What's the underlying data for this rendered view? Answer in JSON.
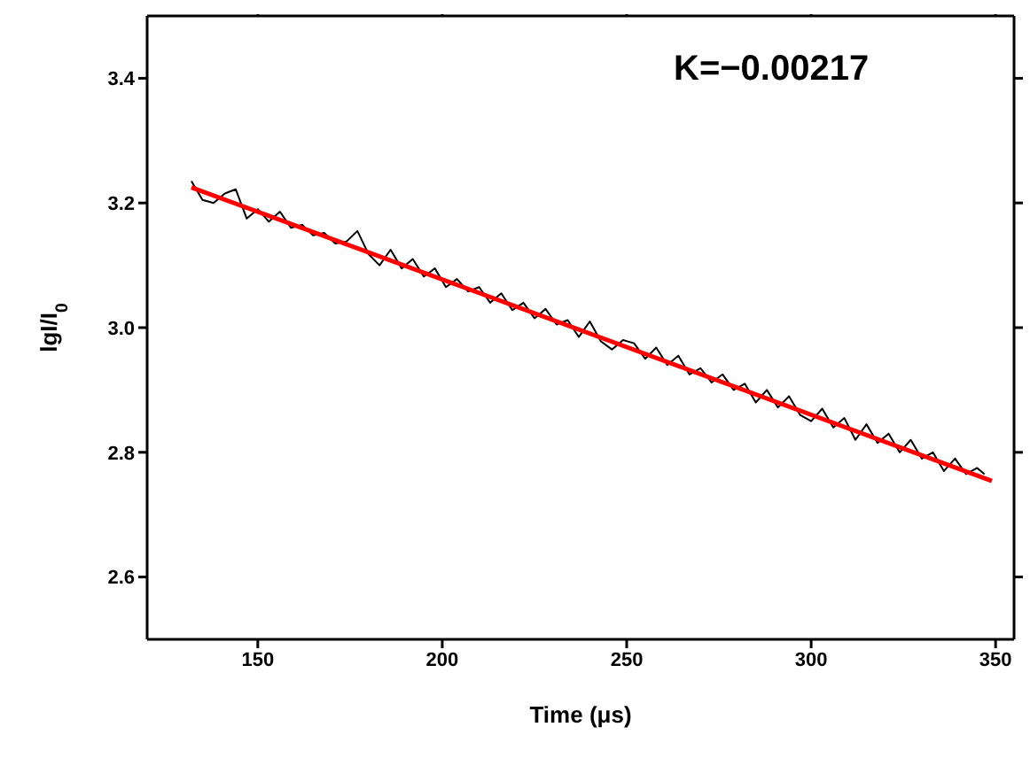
{
  "chart_data": {
    "type": "line",
    "xlabel": "Time (μs)",
    "ylabel": "lgI/I$_{0}$",
    "annotations": [
      "K=−0.00217"
    ],
    "xlim": [
      120,
      355
    ],
    "xticks": [
      150,
      200,
      250,
      300,
      350
    ],
    "ylim": [
      2.5,
      3.5
    ],
    "yticks": [
      2.6,
      2.8,
      {
        "value": 3,
        "label": "3.0"
      },
      3.2,
      3.4
    ],
    "marker": "none",
    "line_style": "solid",
    "series": [
      {
        "color": "#000000",
        "x": [
          132,
          135,
          138,
          141,
          144,
          147,
          150,
          153,
          156,
          159,
          162,
          165,
          168,
          171,
          174,
          177,
          180,
          183,
          186,
          189,
          192,
          195,
          198,
          201,
          204,
          207,
          210,
          213,
          216,
          219,
          222,
          225,
          228,
          231,
          234,
          237,
          240,
          243,
          246,
          249,
          252,
          255,
          258,
          261,
          264,
          267,
          270,
          273,
          276,
          279,
          282,
          285,
          288,
          291,
          294,
          297,
          300,
          303,
          306,
          309,
          312,
          315,
          318,
          321,
          324,
          327,
          330,
          333,
          336,
          339,
          342,
          345,
          347
        ],
        "values": [
          3.235,
          3.205,
          3.2,
          3.215,
          3.222,
          3.175,
          3.19,
          3.17,
          3.186,
          3.16,
          3.165,
          3.148,
          3.152,
          3.135,
          3.138,
          3.155,
          3.118,
          3.1,
          3.125,
          3.095,
          3.11,
          3.082,
          3.095,
          3.065,
          3.078,
          3.058,
          3.065,
          3.04,
          3.055,
          3.028,
          3.04,
          3.015,
          3.03,
          3.005,
          3.012,
          2.985,
          3.01,
          2.978,
          2.965,
          2.98,
          2.975,
          2.95,
          2.968,
          2.94,
          2.955,
          2.925,
          2.935,
          2.912,
          2.925,
          2.9,
          2.91,
          2.88,
          2.9,
          2.872,
          2.89,
          2.86,
          2.85,
          2.87,
          2.84,
          2.855,
          2.82,
          2.845,
          2.815,
          2.83,
          2.8,
          2.82,
          2.79,
          2.8,
          2.77,
          2.79,
          2.765,
          2.775,
          2.765
        ]
      },
      {
        "type": "line",
        "color": "#ff0000",
        "x": [
          132,
          349
        ],
        "values": [
          3.225,
          2.754
        ]
      }
    ]
  }
}
